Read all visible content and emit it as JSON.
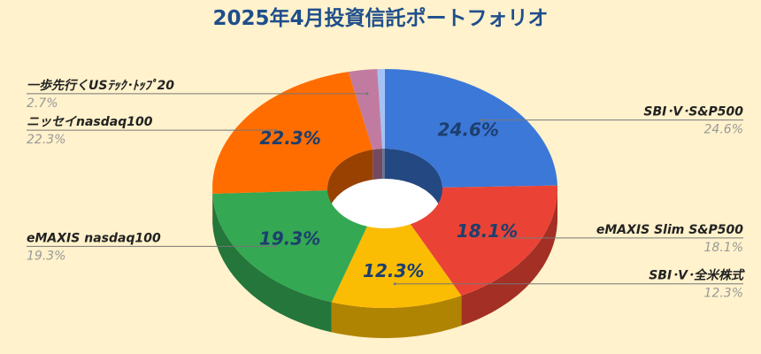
{
  "chart_data": {
    "type": "donut3d",
    "title": "2025年4月投資信託ポートフォリオ",
    "categories": [
      "SBI･V･S&P500",
      "eMAXIS Slim S&P500",
      "SBI･V･全米株式",
      "eMAXIS nasdaq100",
      "ニッセイnasdaq100",
      "一歩先行くUSﾃｯｸ･ﾄｯﾌﾟ20",
      null
    ],
    "values": [
      24.6,
      18.1,
      12.3,
      19.3,
      22.3,
      2.7,
      0.7
    ],
    "value_labels": [
      "24.6%",
      "18.1%",
      "12.3%",
      "19.3%",
      "22.3%",
      "2.7%",
      null
    ],
    "colors": [
      "#3c78d8",
      "#ea4335",
      "#fbbc04",
      "#34a853",
      "#ff6d01",
      "#c27ba0",
      "#a4c2f4"
    ]
  }
}
